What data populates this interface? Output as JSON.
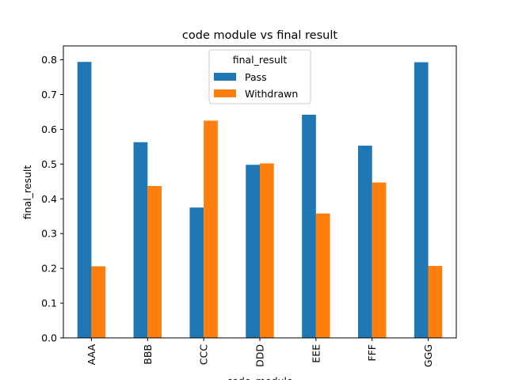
{
  "chart_data": {
    "type": "bar",
    "title": "code module vs final result",
    "xlabel": "code_module",
    "ylabel": "final_result",
    "categories": [
      "AAA",
      "BBB",
      "CCC",
      "DDD",
      "EEE",
      "FFF",
      "GGG"
    ],
    "series": [
      {
        "name": "Pass",
        "color": "#1f77b4",
        "values": [
          0.794,
          0.563,
          0.375,
          0.498,
          0.642,
          0.553,
          0.793
        ]
      },
      {
        "name": "Withdrawn",
        "color": "#ff7f0e",
        "values": [
          0.206,
          0.437,
          0.625,
          0.502,
          0.358,
          0.447,
          0.207
        ]
      }
    ],
    "yticks": [
      0.0,
      0.1,
      0.2,
      0.3,
      0.4,
      0.5,
      0.6,
      0.7,
      0.8
    ],
    "ylim": [
      0,
      0.84
    ],
    "grid": false,
    "legend": {
      "title": "final_result",
      "placement": "upper-center"
    }
  }
}
